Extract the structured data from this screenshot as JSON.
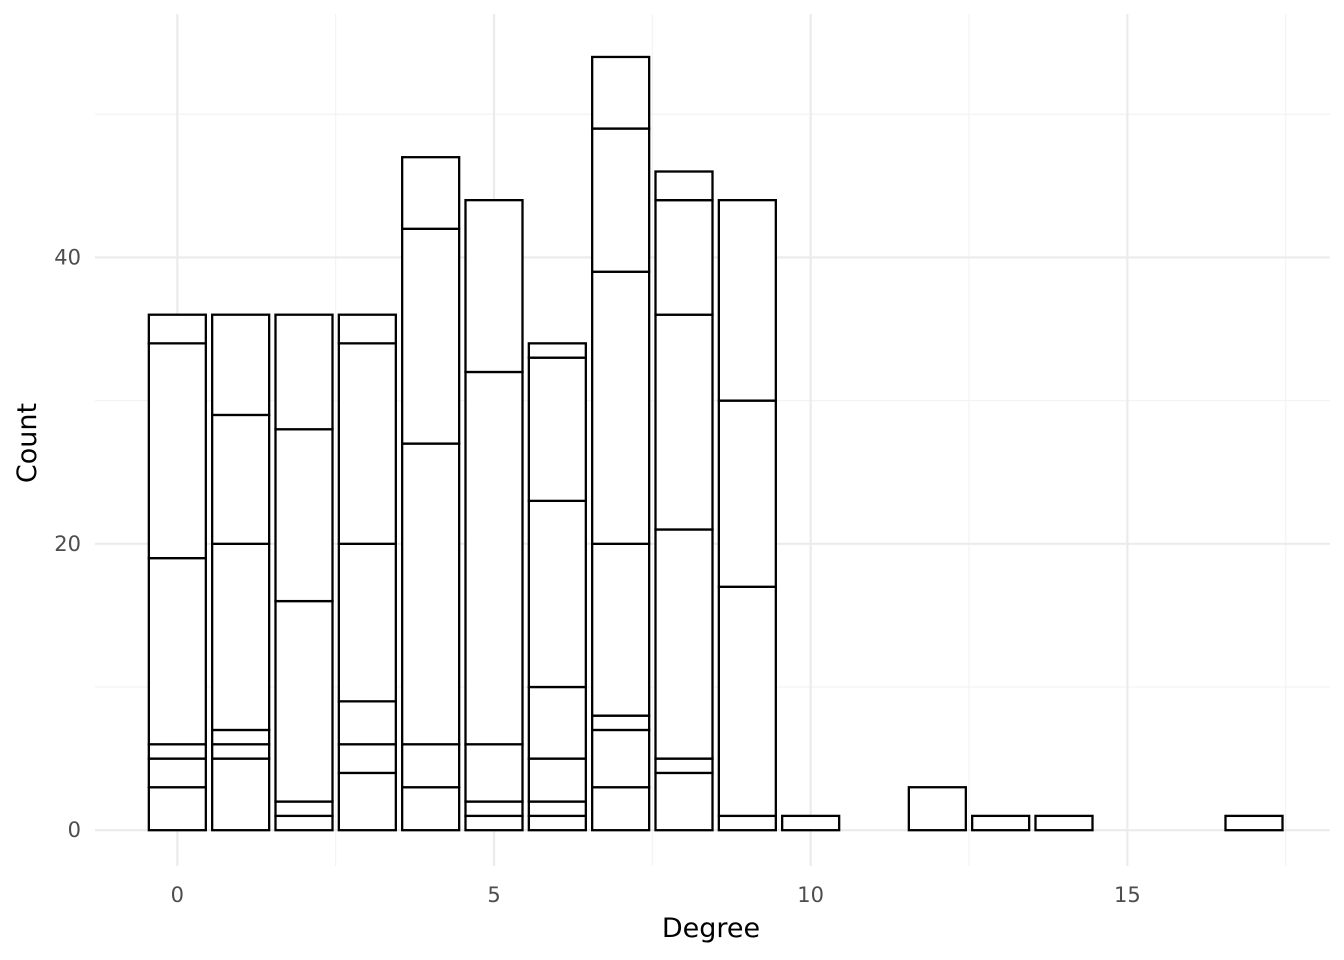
{
  "chart_data": {
    "type": "bar",
    "stacked": true,
    "xlabel": "Degree",
    "ylabel": "Count",
    "xlim": [
      -1.3,
      18.2
    ],
    "ylim": [
      -2.5,
      57
    ],
    "x_ticks": [
      0,
      5,
      10,
      15
    ],
    "x_tick_labels": [
      "0",
      "5",
      "10",
      "15"
    ],
    "y_ticks": [
      0,
      20,
      40
    ],
    "y_tick_labels": [
      "0",
      "20",
      "40"
    ],
    "grid": true,
    "legend": "none",
    "colors": {
      "fill": "#ffffff",
      "stroke": "#000000",
      "grid": "#ebebeb"
    },
    "bars": [
      {
        "x": 0,
        "segment_tops": [
          3,
          5,
          6,
          19,
          34,
          36
        ]
      },
      {
        "x": 1,
        "segment_tops": [
          5,
          6,
          7,
          20,
          29,
          36
        ]
      },
      {
        "x": 2,
        "segment_tops": [
          1,
          2,
          16,
          28,
          36
        ]
      },
      {
        "x": 3,
        "segment_tops": [
          4,
          6,
          9,
          20,
          34,
          36
        ]
      },
      {
        "x": 4,
        "segment_tops": [
          3,
          6,
          27,
          42,
          47
        ]
      },
      {
        "x": 5,
        "segment_tops": [
          1,
          2,
          6,
          32,
          44
        ]
      },
      {
        "x": 6,
        "segment_tops": [
          1,
          2,
          5,
          10,
          23,
          33,
          34
        ]
      },
      {
        "x": 7,
        "segment_tops": [
          3,
          7,
          8,
          20,
          39,
          49,
          54
        ]
      },
      {
        "x": 8,
        "segment_tops": [
          4,
          5,
          21,
          36,
          44,
          46
        ]
      },
      {
        "x": 9,
        "segment_tops": [
          1,
          17,
          30,
          44
        ]
      },
      {
        "x": 10,
        "segment_tops": [
          1
        ]
      },
      {
        "x": 12,
        "segment_tops": [
          3
        ]
      },
      {
        "x": 13,
        "segment_tops": [
          1
        ]
      },
      {
        "x": 14,
        "segment_tops": [
          1
        ]
      },
      {
        "x": 17,
        "segment_tops": [
          1
        ]
      }
    ]
  }
}
